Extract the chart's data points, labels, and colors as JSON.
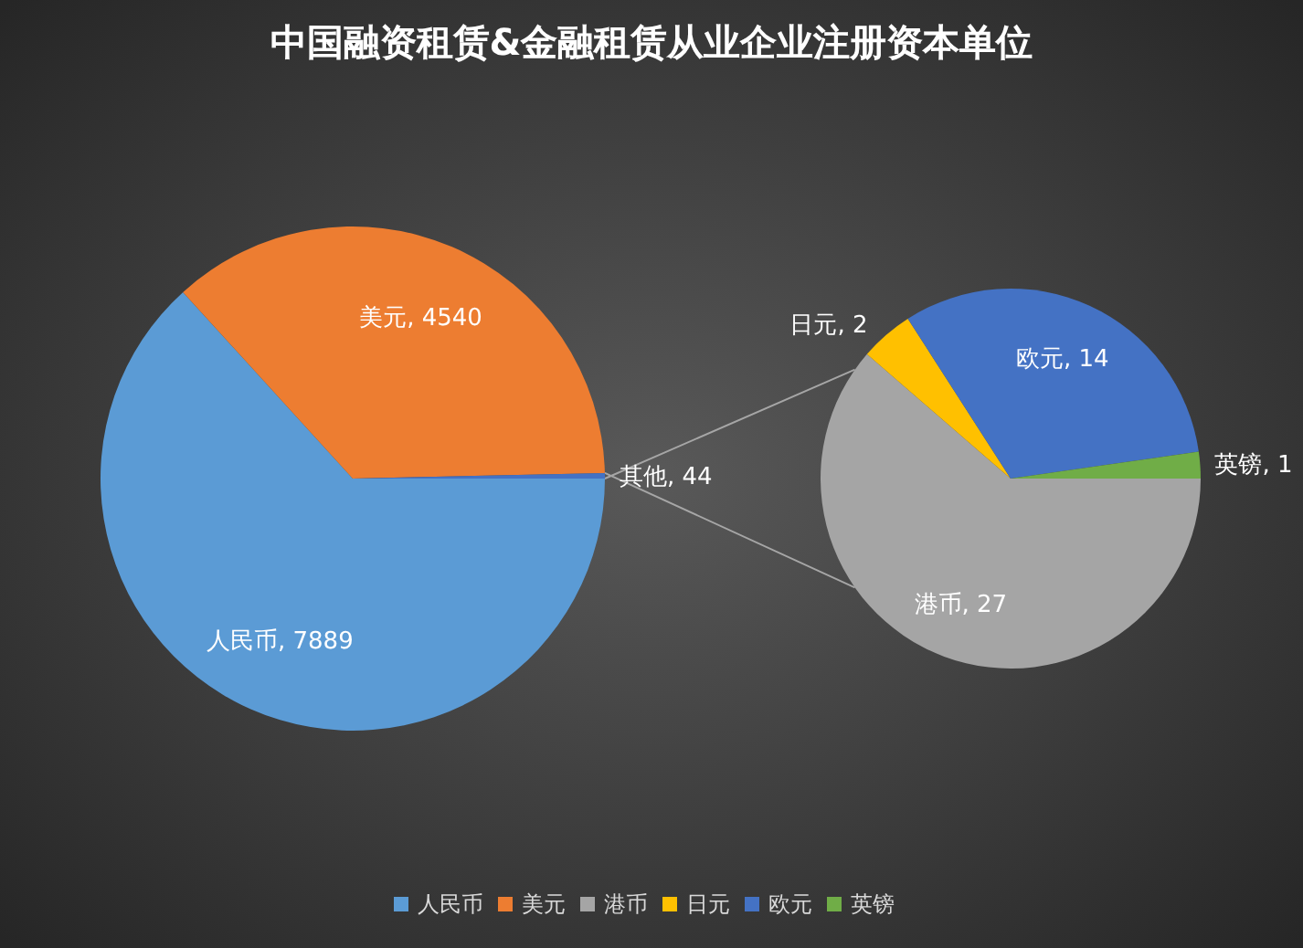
{
  "chart_data": [
    {
      "type": "pie",
      "title": "中国融资租赁&金融租赁从业企业注册资本单位",
      "categories": [
        "人民币",
        "美元",
        "其他"
      ],
      "values": [
        7889,
        4540,
        44
      ],
      "colors": [
        "#5b9bd5",
        "#ed7d31",
        "#4472c4"
      ],
      "value_labels": [
        ", 7889",
        ", 4540",
        ", 44"
      ],
      "legend": "bottom"
    },
    {
      "type": "pie",
      "categories": [
        "港币",
        "日元",
        "欧元",
        "英镑"
      ],
      "values": [
        27,
        2,
        14,
        1
      ],
      "colors": [
        "#a5a5a5",
        "#ffc000",
        "#4472c4",
        "#70ad47"
      ],
      "value_labels": [
        ", 27",
        ", 2",
        ", 14",
        ", 1"
      ],
      "legend": "bottom"
    }
  ]
}
